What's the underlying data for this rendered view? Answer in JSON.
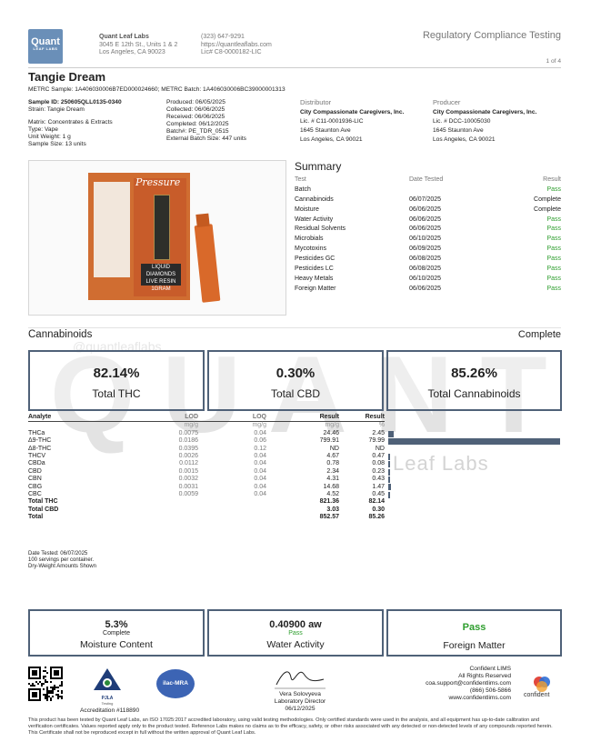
{
  "lab": {
    "logo_line1": "Quant",
    "logo_line2": "LEAF LABS",
    "name": "Quant Leaf Labs",
    "address1": "3045 E 12th St., Units 1 & 2",
    "address2": "Los Angeles, CA 90023",
    "phone": "(323) 647-9291",
    "website": "https://quantleaflabs.com",
    "license": "Lic# C8-0000182-LIC"
  },
  "header": {
    "report_type": "Regulatory Compliance Testing",
    "page": "1 of 4"
  },
  "sample": {
    "name": "Tangie Dream",
    "metrc": "METRC Sample: 1A406030006B7ED000024660; METRC Batch: 1A406030006BC39000001313",
    "sample_id": "Sample ID: 250605QLL0135-0340",
    "strain": "Strain: Tangie Dream",
    "matrix": "Matrix: Concentrates & Extracts",
    "type": "Type: Vape",
    "unit_weight": "Unit Weight: 1 g",
    "sample_size": "Sample Size: 13 units",
    "produced": "Produced: 06/05/2025",
    "collected": "Collected: 06/06/2025",
    "received": "Received: 06/06/2025",
    "completed": "Completed: 06/12/2025",
    "batch": "Batch#: PE_TDR_0515",
    "external_batch": "External Batch Size: 447 units"
  },
  "distributor": {
    "heading": "Distributor",
    "name": "City Compassionate Caregivers, Inc.",
    "license": "Lic. # C11-0001936-LIC",
    "address1": "1645 Staunton Ave",
    "address2": "Los Angeles, CA 90021"
  },
  "producer": {
    "heading": "Producer",
    "name": "City Compassionate Caregivers, Inc.",
    "license": "Lic. # DCC-10005030",
    "address1": "1645 Staunton Ave",
    "address2": "Los Angeles, CA 90021"
  },
  "product_image": {
    "brand": "Pressure",
    "strip": "LIQUID DIAMONDS LIVE RESIN 1GRAM"
  },
  "summary": {
    "title": "Summary",
    "col_test": "Test",
    "col_date": "Date Tested",
    "col_result": "Result",
    "rows": [
      {
        "test": "Batch",
        "date": "",
        "result": "Pass"
      },
      {
        "test": "Cannabinoids",
        "date": "06/07/2025",
        "result": "Complete"
      },
      {
        "test": "Moisture",
        "date": "06/06/2025",
        "result": "Complete"
      },
      {
        "test": "Water Activity",
        "date": "06/06/2025",
        "result": "Pass"
      },
      {
        "test": "Residual Solvents",
        "date": "06/06/2025",
        "result": "Pass"
      },
      {
        "test": "Microbials",
        "date": "06/10/2025",
        "result": "Pass"
      },
      {
        "test": "Mycotoxins",
        "date": "06/09/2025",
        "result": "Pass"
      },
      {
        "test": "Pesticides GC",
        "date": "06/08/2025",
        "result": "Pass"
      },
      {
        "test": "Pesticides LC",
        "date": "06/08/2025",
        "result": "Pass"
      },
      {
        "test": "Heavy Metals",
        "date": "06/10/2025",
        "result": "Pass"
      },
      {
        "test": "Foreign Matter",
        "date": "06/06/2025",
        "result": "Pass"
      }
    ]
  },
  "watermark": {
    "big": "QUANT",
    "handle": "@quantleaflabs",
    "sub": "Leaf Labs"
  },
  "cannabinoids": {
    "title": "Cannabinoids",
    "status": "Complete",
    "total_thc": "82.14%",
    "total_thc_label": "Total THC",
    "total_cbd": "0.30%",
    "total_cbd_label": "Total CBD",
    "total_cann": "85.26%",
    "total_cann_label": "Total Cannabinoids",
    "headers": {
      "analyte": "Analyte",
      "lod": "LOD",
      "loq": "LOQ",
      "result": "Result",
      "result2": "Result"
    },
    "units": {
      "lod": "mg/g",
      "loq": "mg/g",
      "result": "mg/g",
      "result2": "%"
    },
    "rows": [
      {
        "analyte": "THCa",
        "lod": "0.0075",
        "loq": "0.04",
        "mg": "24.46",
        "pct": "2.45",
        "bar": 2.45
      },
      {
        "analyte": "Δ9-THC",
        "lod": "0.0186",
        "loq": "0.06",
        "mg": "799.91",
        "pct": "79.99",
        "bar": 79.99
      },
      {
        "analyte": "Δ8-THC",
        "lod": "0.0395",
        "loq": "0.12",
        "mg": "ND",
        "pct": "ND",
        "bar": 0
      },
      {
        "analyte": "THCV",
        "lod": "0.0026",
        "loq": "0.04",
        "mg": "4.67",
        "pct": "0.47",
        "bar": 0.47
      },
      {
        "analyte": "CBDa",
        "lod": "0.0112",
        "loq": "0.04",
        "mg": "0.78",
        "pct": "0.08",
        "bar": 0.08
      },
      {
        "analyte": "CBD",
        "lod": "0.0015",
        "loq": "0.04",
        "mg": "2.34",
        "pct": "0.23",
        "bar": 0.23
      },
      {
        "analyte": "CBN",
        "lod": "0.0032",
        "loq": "0.04",
        "mg": "4.31",
        "pct": "0.43",
        "bar": 0.43
      },
      {
        "analyte": "CBG",
        "lod": "0.0031",
        "loq": "0.04",
        "mg": "14.68",
        "pct": "1.47",
        "bar": 1.47
      },
      {
        "analyte": "CBC",
        "lod": "0.0059",
        "loq": "0.04",
        "mg": "4.52",
        "pct": "0.45",
        "bar": 0.45
      }
    ],
    "totals": [
      {
        "analyte": "Total THC",
        "mg": "821.36",
        "pct": "82.14"
      },
      {
        "analyte": "Total CBD",
        "mg": "3.03",
        "pct": "0.30"
      },
      {
        "analyte": "Total",
        "mg": "852.57",
        "pct": "85.26"
      }
    ],
    "notes": [
      "Date Tested: 06/07/2025",
      "100 servings per container.",
      "Dry-Weight Amounts Shown"
    ]
  },
  "bottom_boxes": {
    "moisture_value": "5.3%",
    "moisture_status": "Complete",
    "moisture_label": "Moisture Content",
    "water_value": "0.40900 aw",
    "water_status": "Pass",
    "water_label": "Water Activity",
    "foreign_value": "Pass",
    "foreign_label": "Foreign Matter"
  },
  "footer": {
    "pjla": "PJLA",
    "pjla_sub": "Testing",
    "ilac": "ilac-MRA",
    "accreditation": "Accreditation #118890",
    "signer": "Vera Solovyeva",
    "signer_title": "Laboratory Director",
    "sign_date": "06/12/2025",
    "lims_name": "Confident LIMS",
    "lims_rights": "All Rights Reserved",
    "lims_email": "coa.support@confidentlims.com",
    "lims_phone": "(866) 506-5866",
    "lims_web": "www.confidentlims.com",
    "lims_brand": "confident",
    "disclaimer": "This product has been tested by Quant Leaf Labs, an ISO 17025:2017 accredited laboratory, using valid testing methodologies. Only certified standards were used in the analysis, and all equipment has up-to-date calibration and verification certificates. Values reported apply only to the product tested. Reference Labs makes no claims as to the efficacy, safety, or other risks associated with any detected or non-detected levels of any compounds reported herein. This Certificate shall not be reproduced except in full without the written approval of Quant Leaf Labs."
  }
}
